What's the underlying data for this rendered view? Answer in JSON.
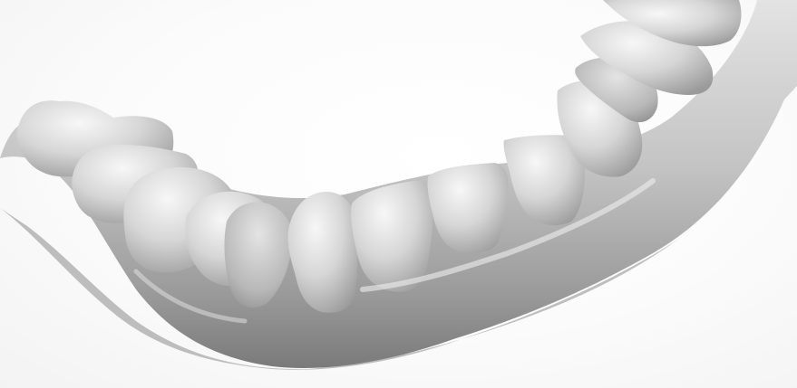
{
  "scene": {
    "subject": "dental-arch-3d-scan",
    "colors": {
      "background": "#fbfbfb",
      "gum_light": "#d9d9d9",
      "gum_mid": "#b3b3b3",
      "gum_dark": "#7d7d7d",
      "tooth_light": "#f0f0f0",
      "tooth_mid": "#c9c9c9",
      "tooth_dark": "#8f8f8f"
    }
  }
}
